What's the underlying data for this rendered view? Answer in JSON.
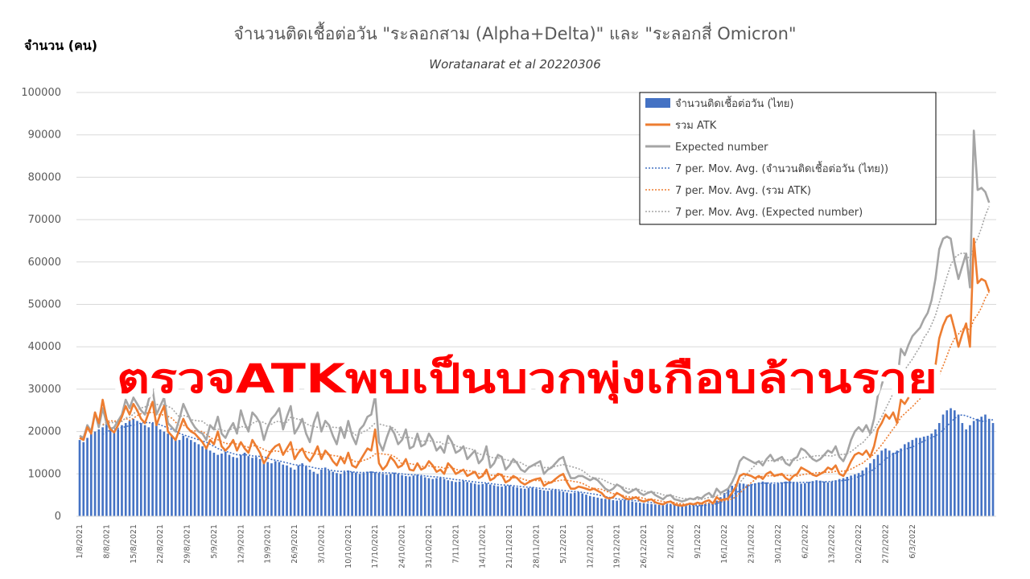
{
  "chart_data": {
    "type": "bar",
    "title": "จำนวนติดเชื้อต่อวัน \"ระลอกสาม (Alpha+Delta)\"  และ  \"ระลอกสี่ Omicron\"",
    "subtitle": "Woratanarat et al 20220306",
    "ylabel": "จำนวน (คน)",
    "ylim": [
      0,
      100000
    ],
    "yticks": [
      "0",
      "10000",
      "20000",
      "30000",
      "40000",
      "50000",
      "60000",
      "70000",
      "80000",
      "90000",
      "100000"
    ],
    "xticks": [
      "1/8/2021",
      "8/8/2021",
      "15/8/2021",
      "22/8/2021",
      "29/8/2021",
      "5/9/2021",
      "12/9/2021",
      "19/9/2021",
      "26/9/2021",
      "3/10/2021",
      "10/10/2021",
      "17/10/2021",
      "24/10/2021",
      "31/10/2021",
      "7/11/2021",
      "14/11/2021",
      "21/11/2021",
      "28/11/2021",
      "5/12/2021",
      "12/12/2021",
      "19/12/2021",
      "26/12/2021",
      "2/1/2022",
      "9/1/2022",
      "16/1/2022",
      "23/1/2022",
      "30/1/2022",
      "6/2/2022",
      "13/2/2022",
      "20/2/2022",
      "27/2/2022",
      "6/3/2022"
    ],
    "x_start": "1/8/2021",
    "x_end": "6/3/2022",
    "grid": true,
    "legend_position": "top-right",
    "series": [
      {
        "name": "จำนวนติดเชื้อต่อวัน (ไทย)",
        "kind": "bar",
        "color": "#4472c4",
        "values": [
          18000,
          17500,
          18500,
          19500,
          20000,
          20500,
          21000,
          22000,
          21000,
          20000,
          20500,
          21500,
          22000,
          22500,
          23000,
          22500,
          22000,
          21500,
          21000,
          22000,
          21500,
          20500,
          20000,
          19500,
          19000,
          18500,
          18000,
          19000,
          18500,
          18000,
          17500,
          17000,
          16500,
          16000,
          15500,
          15000,
          14500,
          14800,
          15200,
          14500,
          14000,
          13800,
          14500,
          15000,
          14200,
          13800,
          14000,
          13500,
          13000,
          12800,
          12500,
          13000,
          12800,
          12200,
          12000,
          11500,
          11000,
          12000,
          12500,
          11800,
          11000,
          10500,
          10000,
          11000,
          11500,
          10800,
          10500,
          10200,
          10000,
          10500,
          10800,
          10500,
          10300,
          10000,
          10200,
          10500,
          10600,
          10400,
          10200,
          10000,
          9800,
          10000,
          10300,
          10000,
          9700,
          9500,
          9400,
          9600,
          9800,
          9500,
          9200,
          9000,
          8800,
          9000,
          9100,
          8800,
          8500,
          8300,
          8100,
          8200,
          8400,
          8100,
          7900,
          7700,
          7500,
          7600,
          7800,
          7500,
          7300,
          7100,
          7000,
          7200,
          7300,
          7000,
          6800,
          6600,
          6500,
          6700,
          6800,
          6500,
          6300,
          6100,
          6000,
          6200,
          6300,
          6000,
          5800,
          5600,
          5400,
          5600,
          5700,
          5400,
          5100,
          4800,
          4600,
          4400,
          4200,
          4100,
          4000,
          3800,
          3700,
          3800,
          3900,
          3700,
          3500,
          3300,
          3200,
          3100,
          3000,
          2900,
          2800,
          2700,
          2600,
          2700,
          2800,
          2650,
          2500,
          2450,
          2400,
          2500,
          2600,
          2500,
          2700,
          2900,
          3100,
          3400,
          3700,
          4500,
          5500,
          6500,
          7200,
          7600,
          7800,
          7700,
          7500,
          7600,
          7800,
          8000,
          8200,
          8000,
          7700,
          7600,
          7800,
          8000,
          8200,
          8300,
          8100,
          7900,
          7700,
          7800,
          8100,
          8300,
          8500,
          8400,
          8200,
          8000,
          8200,
          8500,
          8800,
          9000,
          9300,
          9600,
          9900,
          10200,
          10800,
          11500,
          12500,
          13500,
          14500,
          15500,
          16000,
          15500,
          15000,
          15500,
          16000,
          17000,
          17500,
          18000,
          18500,
          18500,
          18800,
          19000,
          19500,
          20500,
          22000,
          24000,
          25000,
          25500,
          25000,
          24000,
          22000,
          20500,
          21500,
          22500,
          23000,
          23500,
          24000,
          23000,
          22000
        ]
      },
      {
        "name": "รวม ATK",
        "kind": "line",
        "color": "#ed7d31",
        "values": [
          18500,
          18000,
          21000,
          19500,
          24500,
          22000,
          27500,
          23000,
          20500,
          19800,
          21500,
          23500,
          26000,
          24000,
          26500,
          25000,
          23000,
          22000,
          24500,
          27000,
          21500,
          24000,
          26000,
          20000,
          19000,
          18000,
          20500,
          23000,
          21000,
          20000,
          19500,
          18500,
          17500,
          16000,
          18000,
          17000,
          20000,
          16500,
          15500,
          16500,
          18000,
          15500,
          17500,
          16000,
          15000,
          18000,
          16500,
          15000,
          12500,
          14000,
          15500,
          16500,
          17000,
          14500,
          16000,
          17500,
          13500,
          15000,
          16000,
          14000,
          13000,
          14500,
          16500,
          13500,
          15500,
          14500,
          13000,
          12000,
          14000,
          12500,
          15000,
          12000,
          11500,
          13000,
          14500,
          16000,
          15500,
          20500,
          12500,
          11000,
          12000,
          14000,
          13000,
          11500,
          12000,
          13500,
          11000,
          10800,
          12500,
          11000,
          11500,
          13000,
          12000,
          10500,
          11000,
          10000,
          12500,
          11500,
          10000,
          10500,
          11000,
          9500,
          10000,
          10500,
          9000,
          9500,
          11000,
          8500,
          9000,
          10000,
          9800,
          8000,
          8500,
          9500,
          9000,
          8000,
          7500,
          8000,
          8500,
          8800,
          9000,
          7200,
          7800,
          8000,
          8800,
          9500,
          10000,
          8000,
          6500,
          6500,
          7000,
          6800,
          6500,
          6200,
          6500,
          6000,
          5500,
          4500,
          4200,
          4500,
          5500,
          5000,
          4300,
          4000,
          4200,
          4500,
          3800,
          3500,
          3800,
          4000,
          3300,
          3000,
          2800,
          3300,
          3500,
          2800,
          2600,
          2500,
          2700,
          3000,
          2800,
          3200,
          3000,
          3500,
          3800,
          3000,
          4500,
          3800,
          4000,
          4200,
          5500,
          7000,
          9500,
          10000,
          9800,
          9500,
          9000,
          9500,
          8800,
          10000,
          10500,
          9500,
          9800,
          10000,
          9000,
          8500,
          9500,
          10000,
          11500,
          11000,
          10500,
          9800,
          9500,
          10000,
          10500,
          11500,
          11000,
          12000,
          10000,
          9500,
          11000,
          13000,
          14500,
          15000,
          14500,
          15500,
          14000,
          16500,
          20500,
          22000,
          24000,
          23000,
          24500,
          22000,
          27500,
          26500,
          28000,
          29500,
          30000,
          30500,
          31000,
          31500,
          33000,
          35500,
          42000,
          45000,
          47000,
          47500,
          44000,
          40000,
          43000,
          45500,
          40000,
          65500,
          55000,
          56000,
          55500,
          53000
        ]
      },
      {
        "name": "Expected number",
        "kind": "line",
        "color": "#a5a5a5",
        "values": [
          19000,
          18500,
          21500,
          20000,
          24500,
          21000,
          25500,
          22000,
          20500,
          21000,
          22500,
          24000,
          27500,
          25500,
          28000,
          26500,
          25000,
          24000,
          27500,
          30000,
          24000,
          26000,
          28000,
          22000,
          21000,
          20000,
          23000,
          26500,
          24500,
          22500,
          21000,
          20000,
          19500,
          18000,
          21500,
          20500,
          23500,
          19500,
          18500,
          20500,
          22000,
          19500,
          25000,
          22000,
          20000,
          24500,
          23500,
          22000,
          18000,
          21000,
          23000,
          24000,
          25500,
          20500,
          23500,
          26000,
          19500,
          21000,
          23000,
          19500,
          17500,
          22000,
          24500,
          20000,
          22500,
          21500,
          19000,
          17000,
          21000,
          18500,
          22500,
          19000,
          17000,
          20500,
          21500,
          23500,
          24000,
          28500,
          17500,
          15500,
          18500,
          21000,
          19500,
          17000,
          18000,
          20500,
          16000,
          16500,
          19500,
          16500,
          17000,
          19500,
          18000,
          15500,
          16500,
          15000,
          19000,
          17500,
          15000,
          15500,
          16500,
          13500,
          14500,
          15500,
          12500,
          13500,
          16500,
          11500,
          12500,
          14500,
          14000,
          11000,
          12000,
          13500,
          12500,
          11000,
          10500,
          11500,
          12000,
          12500,
          13000,
          10000,
          11000,
          11500,
          12500,
          13500,
          14000,
          11000,
          9000,
          9000,
          9500,
          9500,
          9000,
          8500,
          9000,
          8500,
          7500,
          6500,
          6000,
          6500,
          7500,
          7000,
          6000,
          5500,
          6000,
          6500,
          5500,
          5000,
          5500,
          5800,
          5000,
          4500,
          4000,
          4800,
          5000,
          4000,
          3800,
          3500,
          3800,
          4200,
          4000,
          4500,
          4200,
          5000,
          5500,
          4500,
          6500,
          5500,
          6000,
          6500,
          8000,
          10000,
          13000,
          14000,
          13500,
          13000,
          12500,
          13000,
          12000,
          13500,
          14500,
          13000,
          13500,
          14000,
          12500,
          12000,
          13500,
          14000,
          16000,
          15500,
          14500,
          13500,
          13000,
          13500,
          14500,
          15500,
          15000,
          16500,
          14000,
          13000,
          15000,
          18000,
          20000,
          21000,
          20000,
          21500,
          19500,
          23000,
          28500,
          31000,
          34000,
          32500,
          35000,
          31500,
          39500,
          38000,
          40500,
          42500,
          43500,
          44500,
          46500,
          48000,
          51000,
          56000,
          63000,
          65500,
          66000,
          65500,
          60000,
          56000,
          59000,
          62000,
          54000,
          91000,
          77000,
          77500,
          76500,
          74000
        ]
      }
    ],
    "moving_averages": [
      {
        "name": "7 per. Mov. Avg. (จำนวนติดเชื้อต่อวัน (ไทย))",
        "of": 0,
        "color": "#4472c4"
      },
      {
        "name": "7 per. Mov. Avg. (รวม ATK)",
        "of": 1,
        "color": "#ed7d31"
      },
      {
        "name": "7 per. Mov. Avg. (Expected number)",
        "of": 2,
        "color": "#a5a5a5"
      }
    ],
    "overlay_text": "ตรวจATKพบเป็นบวกพุ่งเกือบล้านราย"
  }
}
